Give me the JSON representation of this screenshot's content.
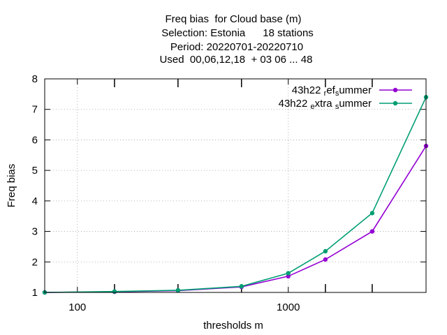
{
  "chart_data": {
    "type": "line",
    "title_lines": [
      "Freq bias  for Cloud base (m)",
      "Selection: Estonia      18 stations",
      "Period: 20220701-20220710",
      "Used  00,06,12,18  + 03 06 ... 48"
    ],
    "xlabel": "thresholds m",
    "ylabel": "Freq bias",
    "x_scale": "log",
    "xlim": [
      70,
      4500
    ],
    "ylim": [
      1,
      8
    ],
    "x_ticks": [
      100,
      1000
    ],
    "x_tick_labels": [
      "100",
      "1000"
    ],
    "y_ticks": [
      1,
      2,
      3,
      4,
      5,
      6,
      7,
      8
    ],
    "y_tick_labels": [
      "1",
      "2",
      "3",
      "4",
      "5",
      "6",
      "7",
      "8"
    ],
    "x_minor_ticks": [
      150,
      300,
      600,
      1500,
      2500
    ],
    "grid": true,
    "legend_position": "top-right",
    "x": [
      70,
      150,
      300,
      600,
      1000,
      1500,
      2500,
      4500
    ],
    "series": [
      {
        "name": "43h22_ref_summer",
        "legend_parts": [
          {
            "text": "43h22 ",
            "sub": false
          },
          {
            "text": "r",
            "sub": true
          },
          {
            "text": "ef",
            "sub": false
          },
          {
            "text": "s",
            "sub": true
          },
          {
            "text": "ummer",
            "sub": false
          }
        ],
        "color": "#9400d3",
        "values": [
          1.0,
          1.02,
          1.06,
          1.18,
          1.53,
          2.08,
          3.0,
          5.8
        ]
      },
      {
        "name": "43h22_extra_summer",
        "legend_parts": [
          {
            "text": "43h22 ",
            "sub": false
          },
          {
            "text": "e",
            "sub": true
          },
          {
            "text": "xtra ",
            "sub": false
          },
          {
            "text": "s",
            "sub": true
          },
          {
            "text": "ummer",
            "sub": false
          }
        ],
        "color": "#009e73",
        "values": [
          1.0,
          1.03,
          1.07,
          1.2,
          1.63,
          2.35,
          3.6,
          7.4
        ]
      }
    ]
  }
}
